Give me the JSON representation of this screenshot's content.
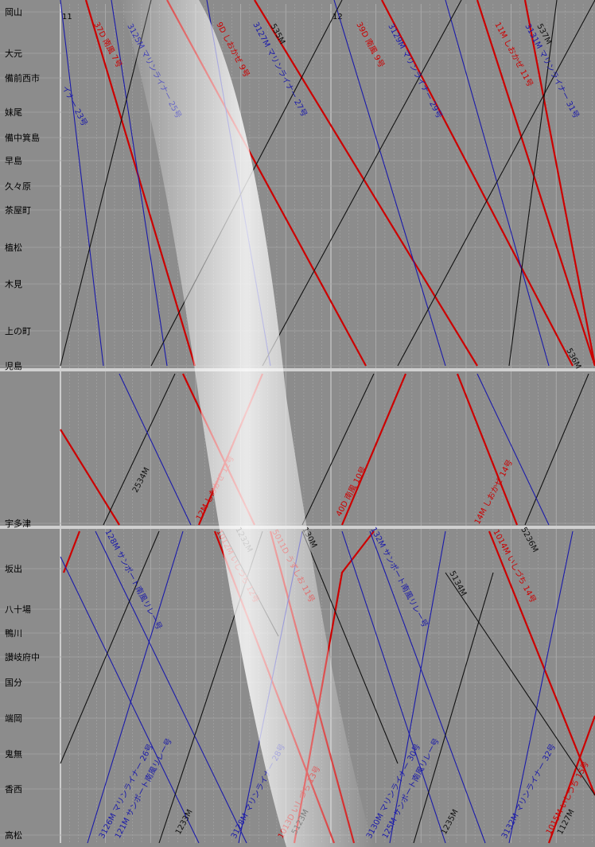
{
  "hours": [
    "11",
    "12"
  ],
  "stations": [
    {
      "name": "岡山"
    },
    {
      "name": "大元"
    },
    {
      "name": "備前西市"
    },
    {
      "name": "妹尾"
    },
    {
      "name": "備中箕島"
    },
    {
      "name": "早島"
    },
    {
      "name": "久々原"
    },
    {
      "name": "茶屋町"
    },
    {
      "name": "植松"
    },
    {
      "name": "木見"
    },
    {
      "name": "上の町"
    },
    {
      "name": "児島"
    },
    {
      "name": "宇多津"
    },
    {
      "name": "坂出"
    },
    {
      "name": "八十場"
    },
    {
      "name": "鴨川"
    },
    {
      "name": "讃岐府中"
    },
    {
      "name": "国分"
    },
    {
      "name": "端岡"
    },
    {
      "name": "鬼無"
    },
    {
      "name": "香西"
    },
    {
      "name": "高松"
    }
  ],
  "colors": {
    "background": "#8c8c8c",
    "limited_express": "#cc0000",
    "rapid": "#1a1aaa",
    "local": "#111111"
  },
  "trains": [
    {
      "label": "37D 南風 7号",
      "kind": "limited_express"
    },
    {
      "label": "3125M マリンライナー 25号",
      "kind": "rapid"
    },
    {
      "label": "9D しおかぜ 9号",
      "kind": "limited_express"
    },
    {
      "label": "3127M マリンライナー 27号",
      "kind": "rapid"
    },
    {
      "label": "535M",
      "kind": "local"
    },
    {
      "label": "39D 南風 9号",
      "kind": "limited_express"
    },
    {
      "label": "3129M マリンライナー 29号",
      "kind": "rapid"
    },
    {
      "label": "11M しおかぜ 11号",
      "kind": "limited_express"
    },
    {
      "label": "3131M マリンライナー 31号",
      "kind": "rapid"
    },
    {
      "label": "537M",
      "kind": "local"
    },
    {
      "label": "イナー 23号",
      "kind": "rapid"
    },
    {
      "label": "536M",
      "kind": "local"
    },
    {
      "label": "2534M",
      "kind": "local"
    },
    {
      "label": "12M しおかぜ 12号",
      "kind": "limited_express"
    },
    {
      "label": "40D 南風 10号",
      "kind": "limited_express"
    },
    {
      "label": "14M しおかぜ 14号",
      "kind": "limited_express"
    },
    {
      "label": "128M サンポート南風リレー号",
      "kind": "rapid"
    },
    {
      "label": "1012M いしづち 12号",
      "kind": "limited_express"
    },
    {
      "label": "1232M",
      "kind": "local"
    },
    {
      "label": "5011D うずしお 11号",
      "kind": "limited_express"
    },
    {
      "label": "130M",
      "kind": "local"
    },
    {
      "label": "132M サンポート南風リレー号",
      "kind": "rapid"
    },
    {
      "label": "1014M いしづち 14号",
      "kind": "limited_express"
    },
    {
      "label": "5236M",
      "kind": "local"
    },
    {
      "label": "5134M",
      "kind": "local"
    },
    {
      "label": "3126M マリンライナー 26号",
      "kind": "rapid"
    },
    {
      "label": "121M サンポート南風リレー号",
      "kind": "rapid"
    },
    {
      "label": "1233M",
      "kind": "local"
    },
    {
      "label": "3128M マリンライナー 28号",
      "kind": "rapid"
    },
    {
      "label": "1013D いしづち 13号",
      "kind": "limited_express"
    },
    {
      "label": "5123M",
      "kind": "local"
    },
    {
      "label": "3130M マリンライナー 30号",
      "kind": "rapid"
    },
    {
      "label": "125M サンポート南風リレー号",
      "kind": "rapid"
    },
    {
      "label": "1235M",
      "kind": "local"
    },
    {
      "label": "3132M マリンライナー 32号",
      "kind": "rapid"
    },
    {
      "label": "1015M いしづち 15号",
      "kind": "limited_express"
    },
    {
      "label": "1127M",
      "kind": "local"
    }
  ]
}
